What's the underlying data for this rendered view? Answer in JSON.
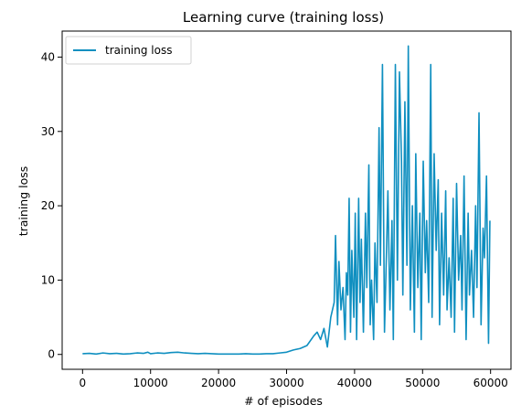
{
  "chart_data": {
    "type": "line",
    "title": "Learning curve (training loss)",
    "xlabel": "# of episodes",
    "ylabel": "training loss",
    "xlim": [
      -3000,
      63000
    ],
    "ylim": [
      -2,
      43.5
    ],
    "xticks": [
      0,
      10000,
      20000,
      30000,
      40000,
      50000,
      60000
    ],
    "yticks": [
      0,
      10,
      20,
      30,
      40
    ],
    "grid": false,
    "legend": "top-left",
    "series": [
      {
        "name": "training loss",
        "color": "#0f8fc0",
        "x": [
          0,
          1000,
          2000,
          3000,
          4000,
          5000,
          6000,
          7000,
          8000,
          9000,
          9600,
          10000,
          11000,
          12000,
          13000,
          14000,
          15000,
          16000,
          17000,
          18000,
          19000,
          20000,
          21000,
          22000,
          23000,
          24000,
          25000,
          26000,
          27000,
          28000,
          29000,
          30000,
          31000,
          32000,
          33000,
          34000,
          34500,
          35000,
          35500,
          36000,
          36500,
          37000,
          37200,
          37500,
          37700,
          38000,
          38300,
          38600,
          38800,
          39000,
          39200,
          39400,
          39600,
          39900,
          40100,
          40300,
          40600,
          40800,
          41000,
          41300,
          41600,
          41800,
          42100,
          42300,
          42500,
          42800,
          43000,
          43300,
          43600,
          43800,
          44100,
          44400,
          44700,
          44900,
          45200,
          45500,
          45700,
          46000,
          46300,
          46600,
          46900,
          47100,
          47400,
          47700,
          47900,
          48200,
          48500,
          48800,
          49000,
          49300,
          49600,
          49800,
          50100,
          50400,
          50600,
          50900,
          51200,
          51400,
          51700,
          52000,
          52300,
          52500,
          52800,
          53100,
          53400,
          53600,
          53900,
          54200,
          54500,
          54700,
          55000,
          55300,
          55600,
          55800,
          56100,
          56400,
          56700,
          56900,
          57200,
          57500,
          57800,
          58000,
          58300,
          58600,
          58900,
          59100,
          59400,
          59700,
          59900
        ],
        "values": [
          0.1,
          0.15,
          0.05,
          0.2,
          0.1,
          0.15,
          0.05,
          0.1,
          0.2,
          0.15,
          0.3,
          0.1,
          0.2,
          0.15,
          0.25,
          0.3,
          0.2,
          0.15,
          0.1,
          0.15,
          0.1,
          0.05,
          0.05,
          0.05,
          0.05,
          0.1,
          0.05,
          0.05,
          0.1,
          0.1,
          0.2,
          0.3,
          0.6,
          0.8,
          1.2,
          2.5,
          3.0,
          2.0,
          3.5,
          1.0,
          5.0,
          7.0,
          16.0,
          4.0,
          12.5,
          6.0,
          9.0,
          2.0,
          11.0,
          8.0,
          21.0,
          3.0,
          14.0,
          5.0,
          19.0,
          2.0,
          21.0,
          7.0,
          15.5,
          3.0,
          19.0,
          9.0,
          25.5,
          4.0,
          10.0,
          2.0,
          15.0,
          7.0,
          30.5,
          12.0,
          39.0,
          3.0,
          14.0,
          22.0,
          6.0,
          18.0,
          2.0,
          39.0,
          10.0,
          38.0,
          26.0,
          8.0,
          34.0,
          12.0,
          41.5,
          6.0,
          20.0,
          3.0,
          27.0,
          9.0,
          19.0,
          2.0,
          26.0,
          11.0,
          18.0,
          7.0,
          39.0,
          5.0,
          27.0,
          14.0,
          23.5,
          4.0,
          19.0,
          8.0,
          22.0,
          6.0,
          13.0,
          5.0,
          21.0,
          3.0,
          23.0,
          10.0,
          16.0,
          6.0,
          24.0,
          2.0,
          19.0,
          8.0,
          14.0,
          5.0,
          20.0,
          9.0,
          32.5,
          4.0,
          17.0,
          13.0,
          24.0,
          1.5,
          18.0
        ]
      }
    ]
  }
}
